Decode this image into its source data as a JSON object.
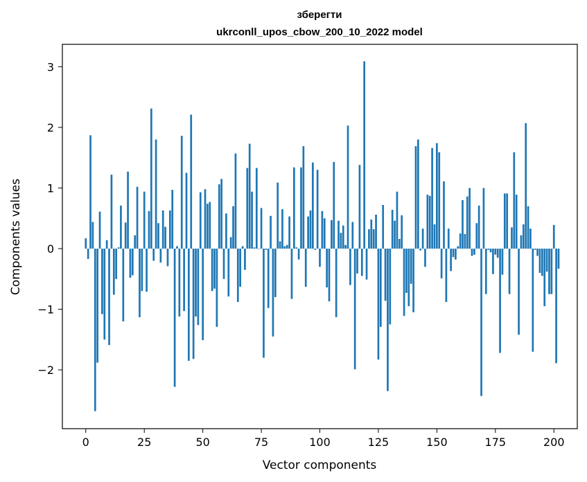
{
  "chart_data": {
    "type": "bar",
    "title_line1": "зберегти",
    "title_line2": "ukrconll_upos_cbow_200_10_2022 model",
    "xlabel": "Vector components",
    "ylabel": "Components values",
    "xlim": [
      -10,
      210
    ],
    "ylim": [
      -2.97,
      3.37
    ],
    "xticks": [
      0,
      25,
      50,
      75,
      100,
      125,
      150,
      175,
      200
    ],
    "yticks": [
      -2,
      -1,
      0,
      1,
      2,
      3
    ],
    "ytick_labels": [
      "−2",
      "−1",
      "0",
      "1",
      "2",
      "3"
    ],
    "bar_color": "#1f77b4",
    "values": [
      0.17,
      -0.17,
      1.87,
      0.44,
      -2.68,
      -1.88,
      0.61,
      -1.08,
      -1.5,
      0.14,
      -1.59,
      1.22,
      -0.76,
      -0.5,
      0.02,
      0.71,
      -1.2,
      0.43,
      1.27,
      -0.48,
      -0.44,
      0.22,
      1.02,
      -1.13,
      -0.7,
      0.94,
      -0.71,
      0.62,
      2.31,
      -0.2,
      1.8,
      0.42,
      -0.23,
      0.63,
      0.36,
      -0.29,
      0.63,
      0.97,
      -2.28,
      0.04,
      -1.12,
      1.86,
      -1.03,
      1.25,
      -1.85,
      2.21,
      -1.82,
      -1.12,
      -1.26,
      0.93,
      -1.51,
      0.98,
      0.74,
      0.77,
      -0.7,
      -0.66,
      -1.29,
      1.06,
      1.15,
      -0.5,
      0.58,
      -0.79,
      0.19,
      0.7,
      1.57,
      -0.88,
      -0.63,
      0.04,
      -0.35,
      1.33,
      1.73,
      0.94,
      0.02,
      1.33,
      0.0,
      0.67,
      -1.8,
      -0.02,
      -0.98,
      0.54,
      -1.45,
      -0.8,
      1.09,
      0.12,
      0.65,
      0.04,
      0.06,
      0.53,
      -0.83,
      1.34,
      0.02,
      -0.18,
      1.34,
      1.69,
      -0.63,
      0.53,
      0.63,
      1.42,
      -0.02,
      1.3,
      -0.3,
      0.62,
      0.5,
      -0.64,
      -0.87,
      0.47,
      1.43,
      -1.13,
      0.46,
      0.26,
      0.38,
      0.06,
      2.03,
      -0.6,
      0.44,
      -1.99,
      -0.41,
      1.38,
      -0.45,
      3.09,
      -0.51,
      0.32,
      0.48,
      0.32,
      0.56,
      -1.83,
      -1.29,
      0.72,
      -0.86,
      -2.35,
      -1.25,
      0.64,
      0.46,
      0.94,
      0.16,
      0.55,
      -1.11,
      -0.73,
      -0.95,
      -0.58,
      -1.05,
      1.69,
      1.8,
      -0.03,
      0.33,
      -0.3,
      0.89,
      0.87,
      1.66,
      0.4,
      1.74,
      1.59,
      -0.49,
      1.11,
      -0.88,
      0.33,
      -0.37,
      -0.14,
      -0.18,
      0.04,
      0.25,
      0.8,
      0.24,
      0.86,
      1.0,
      -0.12,
      -0.1,
      0.42,
      0.71,
      -2.43,
      1.0,
      -0.75,
      -0.02,
      -0.06,
      -0.42,
      -0.1,
      -0.15,
      -1.72,
      -0.43,
      0.91,
      0.91,
      -0.75,
      0.35,
      1.59,
      0.89,
      -1.42,
      0.22,
      0.4,
      2.07,
      0.7,
      0.33,
      -1.7,
      -0.02,
      -0.12,
      -0.4,
      -0.45,
      -0.95,
      -0.38,
      -0.75,
      -0.75,
      0.39,
      -1.89,
      -0.33
    ]
  }
}
